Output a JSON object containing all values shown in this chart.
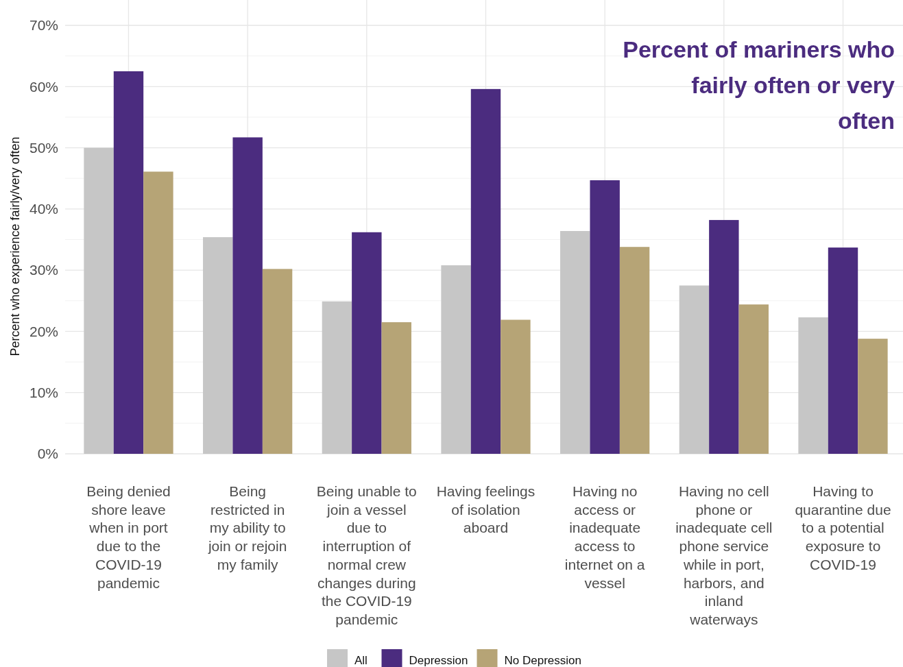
{
  "chart_data": {
    "type": "bar",
    "title": "Percent of mariners who fairly often or very often",
    "ylabel": "Percent who experience fairly/very often",
    "categories": [
      "Being denied shore leave when in port due to the COVID-19 pandemic",
      "Being restricted in my ability to join or rejoin my family",
      "Being unable to join a vessel due to interruption of normal crew changes during the COVID-19 pandemic",
      "Having feelings of isolation aboard",
      "Having no access or inadequate access to internet on a vessel",
      "Having no cell phone or inadequate cell phone service while in port, harbors, and inland waterways",
      "Having to quarantine due to a potential exposure to COVID-19"
    ],
    "series": [
      {
        "name": "All",
        "color": "#c6c6c6",
        "values": [
          50,
          35.4,
          24.9,
          30.8,
          36.4,
          27.5,
          22.3
        ]
      },
      {
        "name": "Depression",
        "color": "#4b2c7f",
        "values": [
          62.5,
          51.7,
          36.2,
          59.6,
          44.7,
          38.2,
          33.7
        ]
      },
      {
        "name": "No Depression",
        "color": "#b6a476",
        "values": [
          46.1,
          30.2,
          21.5,
          21.9,
          33.8,
          24.4,
          18.8
        ]
      }
    ],
    "ylim": [
      0,
      70
    ],
    "yticks": [
      {
        "value": 0,
        "label": "0%"
      },
      {
        "value": 10,
        "label": "10%"
      },
      {
        "value": 20,
        "label": "20%"
      },
      {
        "value": 30,
        "label": "30%"
      },
      {
        "value": 40,
        "label": "40%"
      },
      {
        "value": 50,
        "label": "50%"
      },
      {
        "value": 60,
        "label": "60%"
      },
      {
        "value": 70,
        "label": "70%"
      }
    ],
    "grid": true,
    "legend": "bottom"
  }
}
